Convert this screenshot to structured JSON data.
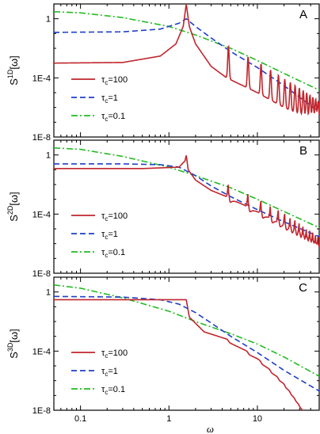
{
  "chart_data": [
    {
      "panel": "A",
      "type": "line",
      "xscale": "log",
      "yscale": "log",
      "xlim": [
        0.05,
        50
      ],
      "ylim": [
        1e-08,
        10
      ],
      "ylabel_base": "S",
      "ylabel_sup": "1D",
      "ylabel_arg": "[ω]",
      "yticks": [
        {
          "v": 1,
          "label": "1"
        },
        {
          "v": 0.0001,
          "label": "1E-4"
        },
        {
          "v": 1e-08,
          "label": "1E-8"
        }
      ],
      "legend": [
        {
          "name": "τ",
          "sub": "c",
          "value": "=100",
          "color": "#c0262d",
          "dash": "solid"
        },
        {
          "name": "τ",
          "sub": "c",
          "value": "=1",
          "color": "#1f3fc8",
          "dash": "dashed"
        },
        {
          "name": "τ",
          "sub": "c",
          "value": "=0.1",
          "color": "#22bb22",
          "dash": "dashdot"
        }
      ],
      "series": [
        {
          "key": "tau100",
          "x": [
            0.05,
            0.3,
            0.8,
            1.2,
            1.45,
            1.57,
            1.7,
            2.0,
            3.0,
            4.5,
            10,
            20,
            50
          ],
          "y": [
            0.001,
            0.0011,
            0.003,
            0.02,
            0.3,
            10,
            0.3,
            0.02,
            0.0006,
            0.0001,
            1e-05,
            1e-06,
            8e-08
          ],
          "peaks": [
            4.71,
            7.85,
            11.0,
            14.1,
            17.3,
            20.4,
            23.6,
            26.7,
            29.8,
            33.0,
            36.1,
            39.3,
            42.4,
            45.6,
            48.7
          ]
        },
        {
          "key": "tau1",
          "x": [
            0.05,
            0.3,
            0.8,
            1.3,
            1.57,
            2.0,
            3.0,
            5.0,
            10,
            20,
            50
          ],
          "y": [
            0.12,
            0.13,
            0.2,
            0.5,
            1.0,
            0.3,
            0.05,
            0.006,
            0.0005,
            3e-05,
            5e-07
          ]
        },
        {
          "key": "tau01",
          "x": [
            0.05,
            0.1,
            0.3,
            1.0,
            2.0,
            5.0,
            10,
            20,
            50
          ],
          "y": [
            3.0,
            2.5,
            1.2,
            0.3,
            0.08,
            0.01,
            0.0015,
            0.0002,
            1.5e-05
          ]
        }
      ]
    },
    {
      "panel": "B",
      "type": "line",
      "xscale": "log",
      "yscale": "log",
      "xlim": [
        0.05,
        50
      ],
      "ylim": [
        1e-08,
        10
      ],
      "ylabel_base": "S",
      "ylabel_sup": "2D",
      "ylabel_arg": "[ω]",
      "yticks": [
        {
          "v": 1,
          "label": "1"
        },
        {
          "v": 0.0001,
          "label": "1E-4"
        },
        {
          "v": 1e-08,
          "label": "1E-8"
        }
      ],
      "legend": [
        {
          "name": "τ",
          "sub": "c",
          "value": "=100",
          "color": "#c0262d",
          "dash": "solid"
        },
        {
          "name": "τ",
          "sub": "c",
          "value": "=1",
          "color": "#1f3fc8",
          "dash": "dashed"
        },
        {
          "name": "τ",
          "sub": "c",
          "value": "=0.1",
          "color": "#22bb22",
          "dash": "dashdot"
        }
      ],
      "series": [
        {
          "key": "tau100",
          "x": [
            0.05,
            0.5,
            1.3,
            1.52,
            1.57,
            1.65,
            2.0,
            3.0,
            4.5,
            10,
            20,
            50
          ],
          "y": [
            0.12,
            0.12,
            0.15,
            0.4,
            1.0,
            0.1,
            0.02,
            0.004,
            0.0015,
            0.00015,
            2e-05,
            1.5e-06
          ],
          "peaks": [
            4.71,
            7.85,
            11.0,
            14.1,
            17.3,
            20.4,
            23.6,
            26.7,
            29.8,
            33.0,
            36.1,
            39.3,
            42.4,
            45.6,
            48.7
          ]
        },
        {
          "key": "tau1",
          "x": [
            0.05,
            0.3,
            0.8,
            1.3,
            2.0,
            3.0,
            5.0,
            10,
            20,
            50
          ],
          "y": [
            0.25,
            0.25,
            0.22,
            0.15,
            0.04,
            0.008,
            0.0015,
            0.0002,
            3e-05,
            3e-06
          ]
        },
        {
          "key": "tau01",
          "x": [
            0.05,
            0.1,
            0.3,
            1.0,
            2.0,
            5.0,
            10,
            20,
            50
          ],
          "y": [
            3.0,
            2.4,
            0.8,
            0.15,
            0.04,
            0.006,
            0.001,
            0.00015,
            1.2e-05
          ]
        }
      ]
    },
    {
      "panel": "C",
      "type": "line",
      "xscale": "log",
      "yscale": "log",
      "xlim": [
        0.05,
        50
      ],
      "ylim": [
        1e-08,
        10
      ],
      "ylabel_base": "S",
      "ylabel_sup": "3D",
      "ylabel_arg": "[ω]",
      "xlabel": "ω",
      "xticks": [
        {
          "v": 0.1,
          "label": "0.1"
        },
        {
          "v": 1,
          "label": "1"
        },
        {
          "v": 10,
          "label": "10"
        }
      ],
      "yticks": [
        {
          "v": 1,
          "label": "1"
        },
        {
          "v": 0.0001,
          "label": "1E-4"
        },
        {
          "v": 1e-08,
          "label": "1E-8"
        }
      ],
      "legend": [
        {
          "name": "τ",
          "sub": "c",
          "value": "=100",
          "color": "#c0262d",
          "dash": "solid"
        },
        {
          "name": "τ",
          "sub": "c",
          "value": "=1",
          "color": "#1f3fc8",
          "dash": "dashed"
        },
        {
          "name": "τ",
          "sub": "c",
          "value": "=0.1",
          "color": "#22bb22",
          "dash": "dashdot"
        }
      ],
      "series": [
        {
          "key": "tau100",
          "x": [
            0.05,
            0.5,
            1.4,
            1.57,
            1.7,
            2.5,
            4.7,
            10,
            20,
            50
          ],
          "y": [
            0.3,
            0.3,
            0.3,
            0.3,
            0.02,
            0.002,
            0.0006,
            7e-05,
            5e-06,
            5e-08
          ],
          "steps": [
            4.71,
            7.85,
            11.0,
            14.1,
            17.3,
            20.4,
            23.6,
            26.7,
            29.8,
            33.0,
            36.1,
            39.3,
            42.4,
            45.6,
            48.7
          ]
        },
        {
          "key": "tau1",
          "x": [
            0.05,
            0.3,
            0.8,
            1.3,
            2.0,
            3.0,
            5.0,
            10,
            20,
            50
          ],
          "y": [
            0.5,
            0.45,
            0.3,
            0.15,
            0.04,
            0.008,
            0.001,
            8e-05,
            5e-06,
            2e-07
          ]
        },
        {
          "key": "tau01",
          "x": [
            0.05,
            0.1,
            0.3,
            1.0,
            2.0,
            5.0,
            10,
            20,
            50
          ],
          "y": [
            3.0,
            1.8,
            0.4,
            0.05,
            0.01,
            0.0015,
            0.0003,
            4e-05,
            2e-06
          ]
        }
      ]
    }
  ]
}
